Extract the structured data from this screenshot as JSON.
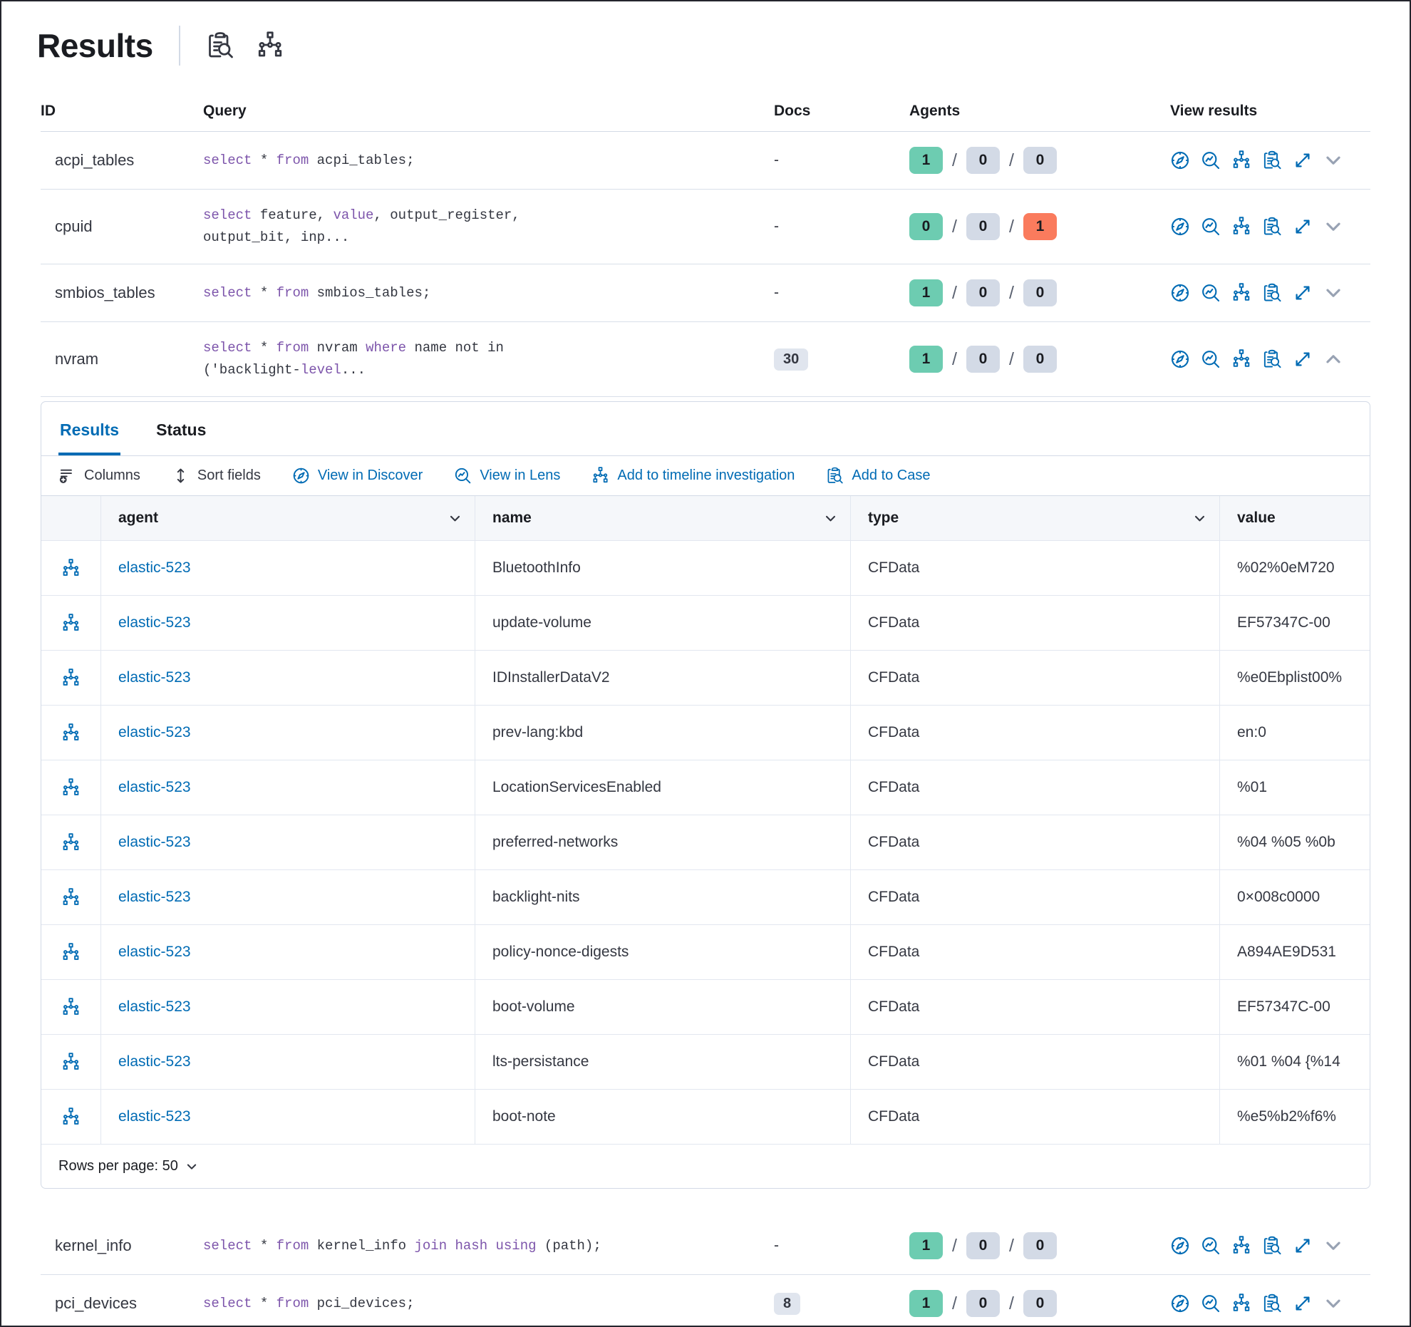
{
  "header": {
    "title": "Results",
    "icons": [
      "inspect-icon",
      "sitemap-icon"
    ]
  },
  "colors": {
    "primary_blue": "#006bb4",
    "keyword_purple": "#7d55ab",
    "badge_success": "#6dccb1",
    "badge_neutral": "#d3dae6",
    "badge_danger": "#fa7b5d"
  },
  "columns": {
    "id": "ID",
    "query": "Query",
    "docs": "Docs",
    "agents": "Agents",
    "view": "View results"
  },
  "view_actions": [
    {
      "icon": "discover",
      "name": "view-in-discover-icon"
    },
    {
      "icon": "lens",
      "name": "view-in-lens-icon"
    },
    {
      "icon": "sitemap",
      "name": "add-to-timeline-icon"
    },
    {
      "icon": "inspect",
      "name": "add-to-case-icon"
    },
    {
      "icon": "expand",
      "name": "expand-icon"
    }
  ],
  "queries": [
    {
      "id": "acpi_tables",
      "lines": [
        [
          {
            "t": "select",
            "k": 1
          },
          {
            "t": " * "
          },
          {
            "t": "from",
            "k": 1
          },
          {
            "t": " acpi_tables;"
          }
        ]
      ],
      "docs": "-",
      "agents": [
        {
          "v": "1",
          "s": "success"
        },
        {
          "v": "0",
          "s": "neutral"
        },
        {
          "v": "0",
          "s": "neutral"
        }
      ],
      "expanded": false
    },
    {
      "id": "cpuid",
      "lines": [
        [
          {
            "t": "select",
            "k": 1
          },
          {
            "t": " feature, "
          },
          {
            "t": "value",
            "k": 1
          },
          {
            "t": ", output_register,"
          }
        ],
        [
          {
            "t": "output_bit, inp..."
          }
        ]
      ],
      "docs": "-",
      "agents": [
        {
          "v": "0",
          "s": "success"
        },
        {
          "v": "0",
          "s": "neutral"
        },
        {
          "v": "1",
          "s": "danger"
        }
      ],
      "expanded": false
    },
    {
      "id": "smbios_tables",
      "lines": [
        [
          {
            "t": "select",
            "k": 1
          },
          {
            "t": " * "
          },
          {
            "t": "from",
            "k": 1
          },
          {
            "t": " smbios_tables;"
          }
        ]
      ],
      "docs": "-",
      "agents": [
        {
          "v": "1",
          "s": "success"
        },
        {
          "v": "0",
          "s": "neutral"
        },
        {
          "v": "0",
          "s": "neutral"
        }
      ],
      "expanded": false
    },
    {
      "id": "nvram",
      "lines": [
        [
          {
            "t": "select",
            "k": 1
          },
          {
            "t": " * "
          },
          {
            "t": "from",
            "k": 1
          },
          {
            "t": " nvram "
          },
          {
            "t": "where",
            "k": 1
          },
          {
            "t": " name not in"
          }
        ],
        [
          {
            "t": "('backlight-"
          },
          {
            "t": "level",
            "k": 1
          },
          {
            "t": "..."
          }
        ]
      ],
      "docs_badge": "30",
      "agents": [
        {
          "v": "1",
          "s": "success"
        },
        {
          "v": "0",
          "s": "neutral"
        },
        {
          "v": "0",
          "s": "neutral"
        }
      ],
      "expanded": true
    },
    {
      "id": "kernel_info",
      "lines": [
        [
          {
            "t": "select",
            "k": 1
          },
          {
            "t": " * "
          },
          {
            "t": "from",
            "k": 1
          },
          {
            "t": " kernel_info "
          },
          {
            "t": "join hash using",
            "k": 1
          },
          {
            "t": " (path);"
          }
        ]
      ],
      "docs": "-",
      "agents": [
        {
          "v": "1",
          "s": "success"
        },
        {
          "v": "0",
          "s": "neutral"
        },
        {
          "v": "0",
          "s": "neutral"
        }
      ],
      "expanded": false
    },
    {
      "id": "pci_devices",
      "lines": [
        [
          {
            "t": "select",
            "k": 1
          },
          {
            "t": " * "
          },
          {
            "t": "from",
            "k": 1
          },
          {
            "t": " pci_devices;"
          }
        ]
      ],
      "docs_badge": "8",
      "agents": [
        {
          "v": "1",
          "s": "success"
        },
        {
          "v": "0",
          "s": "neutral"
        },
        {
          "v": "0",
          "s": "neutral"
        }
      ],
      "expanded": false
    }
  ],
  "panel": {
    "tabs": [
      {
        "label": "Results",
        "active": true
      },
      {
        "label": "Status",
        "active": false
      }
    ],
    "toolbar": {
      "columns": "Columns",
      "sort": "Sort fields",
      "discover": "View in Discover",
      "lens": "View in Lens",
      "timeline": "Add to timeline investigation",
      "case": "Add to Case"
    },
    "grid": {
      "headers": {
        "agent": "agent",
        "name": "name",
        "type": "type",
        "value": "value"
      },
      "rows": [
        {
          "agent": "elastic-523",
          "name": "BluetoothInfo",
          "type": "CFData",
          "value": "%02%0eM720"
        },
        {
          "agent": "elastic-523",
          "name": "update-volume",
          "type": "CFData",
          "value": "EF57347C-00"
        },
        {
          "agent": "elastic-523",
          "name": "IDInstallerDataV2",
          "type": "CFData",
          "value": "%e0Ebplist00%"
        },
        {
          "agent": "elastic-523",
          "name": "prev-lang:kbd",
          "type": "CFData",
          "value": "en:0"
        },
        {
          "agent": "elastic-523",
          "name": "LocationServicesEnabled",
          "type": "CFData",
          "value": "%01"
        },
        {
          "agent": "elastic-523",
          "name": "preferred-networks",
          "type": "CFData",
          "value": "%04 %05 %0b"
        },
        {
          "agent": "elastic-523",
          "name": "backlight-nits",
          "type": "CFData",
          "value": "0×008c0000"
        },
        {
          "agent": "elastic-523",
          "name": "policy-nonce-digests",
          "type": "CFData",
          "value": "A894AE9D531"
        },
        {
          "agent": "elastic-523",
          "name": "boot-volume",
          "type": "CFData",
          "value": "EF57347C-00"
        },
        {
          "agent": "elastic-523",
          "name": "lts-persistance",
          "type": "CFData",
          "value": "%01 %04 {%14"
        },
        {
          "agent": "elastic-523",
          "name": "boot-note",
          "type": "CFData",
          "value": "%e5%b2%f6%"
        }
      ]
    },
    "pagination": {
      "label": "Rows per page: 50"
    }
  }
}
